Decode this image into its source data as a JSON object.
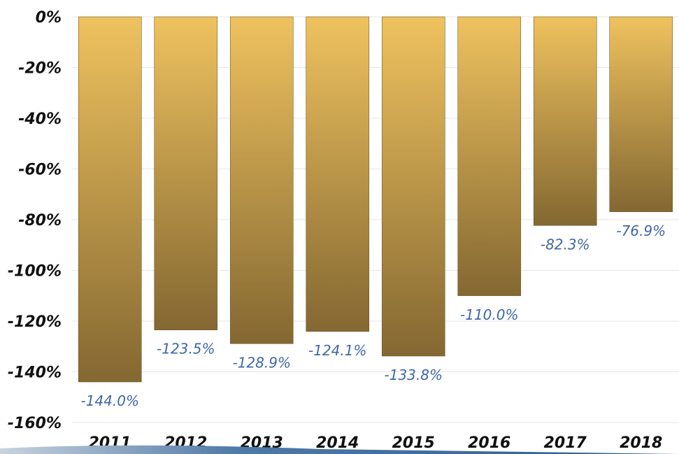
{
  "chart_data": {
    "type": "bar",
    "title": "",
    "xlabel": "",
    "ylabel": "",
    "categories": [
      "2011",
      "2012",
      "2013",
      "2014",
      "2015",
      "2016",
      "2017",
      "2018"
    ],
    "values": [
      -144.0,
      -123.5,
      -128.9,
      -124.1,
      -133.8,
      -110.0,
      -82.3,
      -76.9
    ],
    "data_labels": [
      "-144.0%",
      "-123.5%",
      "-128.9%",
      "-124.1%",
      "-133.8%",
      "-110.0%",
      "-82.3%",
      "-76.9%"
    ],
    "ylim": [
      -160,
      0
    ],
    "yticks": [
      0,
      -20,
      -40,
      -60,
      -80,
      -100,
      -120,
      -140,
      -160
    ],
    "ytick_labels": [
      "0%",
      "-20%",
      "-40%",
      "-60%",
      "-80%",
      "-100%",
      "-120%",
      "-140%",
      "-160%"
    ],
    "grid": true,
    "legend": "none",
    "colors": {
      "bar_top": "#efc25f",
      "bar_bottom": "#846832",
      "bar_stroke": "#6f5a2c",
      "data_label": "#3f67a8",
      "axis_text": "#111111",
      "grid": "#e6e6e6",
      "footer_band": "#2d5f93"
    }
  }
}
